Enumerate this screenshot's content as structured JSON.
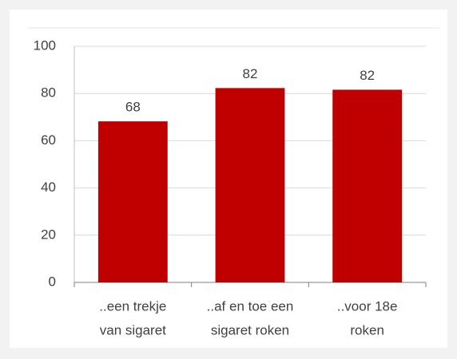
{
  "chart_data": {
    "type": "bar",
    "categories": [
      [
        "..een trekje",
        "van sigaret"
      ],
      [
        "..af en toe een",
        "sigaret roken"
      ],
      [
        "..voor 18e",
        "roken"
      ]
    ],
    "values": [
      68.2,
      82.3,
      81.6
    ],
    "value_labels": [
      "68",
      "82",
      "82"
    ],
    "color": "#c00000",
    "ylim": [
      0,
      100
    ],
    "yticks": [
      0,
      20,
      40,
      60,
      80,
      100
    ],
    "grid": true
  }
}
